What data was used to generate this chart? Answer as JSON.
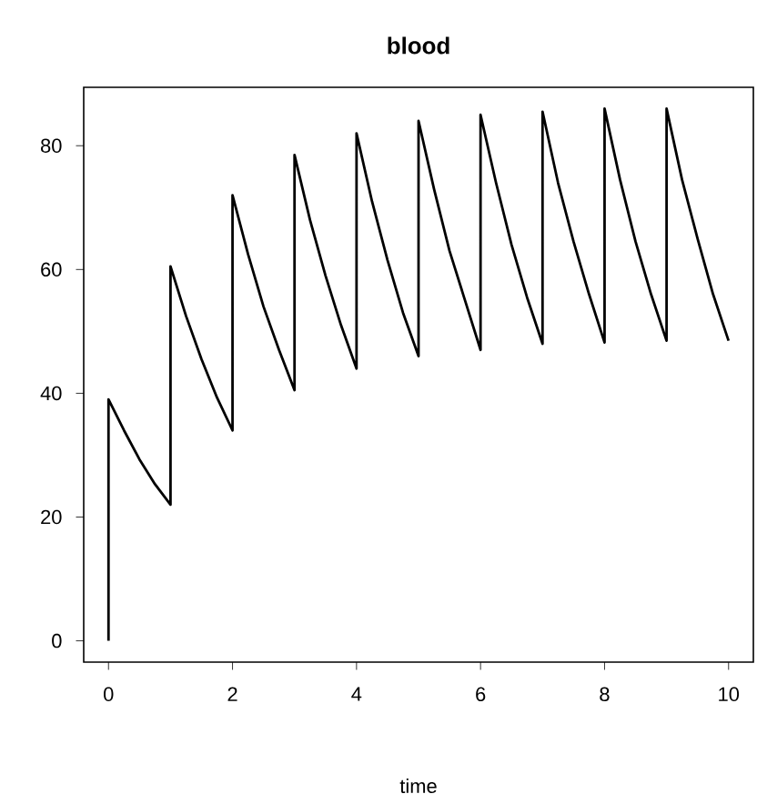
{
  "chart_data": {
    "type": "line",
    "title": "blood",
    "xlabel": "time",
    "x": [
      0,
      0,
      0.25,
      0.5,
      0.75,
      1,
      1,
      1.25,
      1.5,
      1.75,
      2,
      2,
      2.25,
      2.5,
      2.75,
      3,
      3,
      3.25,
      3.5,
      3.75,
      4,
      4,
      4.25,
      4.5,
      4.75,
      5,
      5,
      5.25,
      5.5,
      5.75,
      6,
      6,
      6.25,
      6.5,
      6.75,
      7,
      7,
      7.25,
      7.5,
      7.75,
      8,
      8,
      8.25,
      8.5,
      8.75,
      9,
      9,
      9.25,
      9.5,
      9.75,
      10
    ],
    "series": [
      {
        "color": "#000000",
        "values": [
          0,
          39,
          34,
          29.3,
          25.3,
          22,
          60.5,
          52.5,
          45.5,
          39.3,
          34,
          72,
          62.5,
          54,
          47,
          40.5,
          78.5,
          68,
          59,
          51,
          44,
          82,
          71,
          61.5,
          53,
          46,
          84,
          73,
          63,
          55,
          47,
          85,
          74,
          64,
          55.5,
          48,
          85.5,
          74,
          64.5,
          56,
          48.2,
          86,
          74.5,
          64.5,
          56,
          48.5,
          86,
          74.5,
          65,
          56,
          48.5
        ]
      }
    ],
    "xlim": [
      -0.4,
      10.4
    ],
    "ylim": [
      -3.44,
      89.44
    ],
    "xticks": [
      0,
      2,
      4,
      6,
      8,
      10
    ],
    "yticks": [
      0,
      20,
      40,
      60,
      80
    ],
    "grid": false,
    "marker": "none",
    "line_style": "solid"
  }
}
